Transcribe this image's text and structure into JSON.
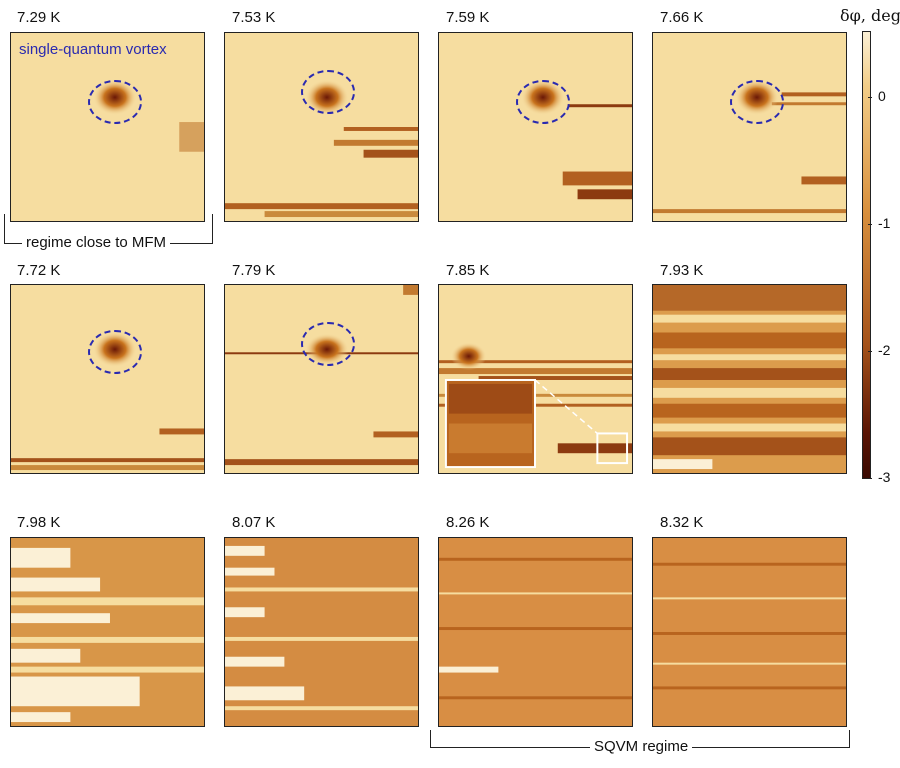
{
  "colorbar": {
    "title": "δφ, deg.",
    "ticks": [
      "0",
      "-1",
      "-2",
      "-3"
    ],
    "max_color": "#f7e0a8",
    "mid_color": "#c8741e",
    "min_color": "#3a0a02"
  },
  "annotations": {
    "vortex": "single-quantum vortex",
    "regime_mfm": "regime close to MFM",
    "regime_sqvm": "SQVM regime"
  },
  "panels": [
    {
      "label": "7.29 K",
      "style": "vortex"
    },
    {
      "label": "7.53 K",
      "style": "vortex"
    },
    {
      "label": "7.59 K",
      "style": "vortex"
    },
    {
      "label": "7.66 K",
      "style": "vortex"
    },
    {
      "label": "7.72 K",
      "style": "vortex"
    },
    {
      "label": "7.79 K",
      "style": "vortex"
    },
    {
      "label": "7.85 K",
      "style": "mixed"
    },
    {
      "label": "7.93 K",
      "style": "noisy"
    },
    {
      "label": "7.98 K",
      "style": "noisy"
    },
    {
      "label": "8.07 K",
      "style": "noisy"
    },
    {
      "label": "8.26 K",
      "style": "full"
    },
    {
      "label": "8.32 K",
      "style": "full"
    }
  ]
}
